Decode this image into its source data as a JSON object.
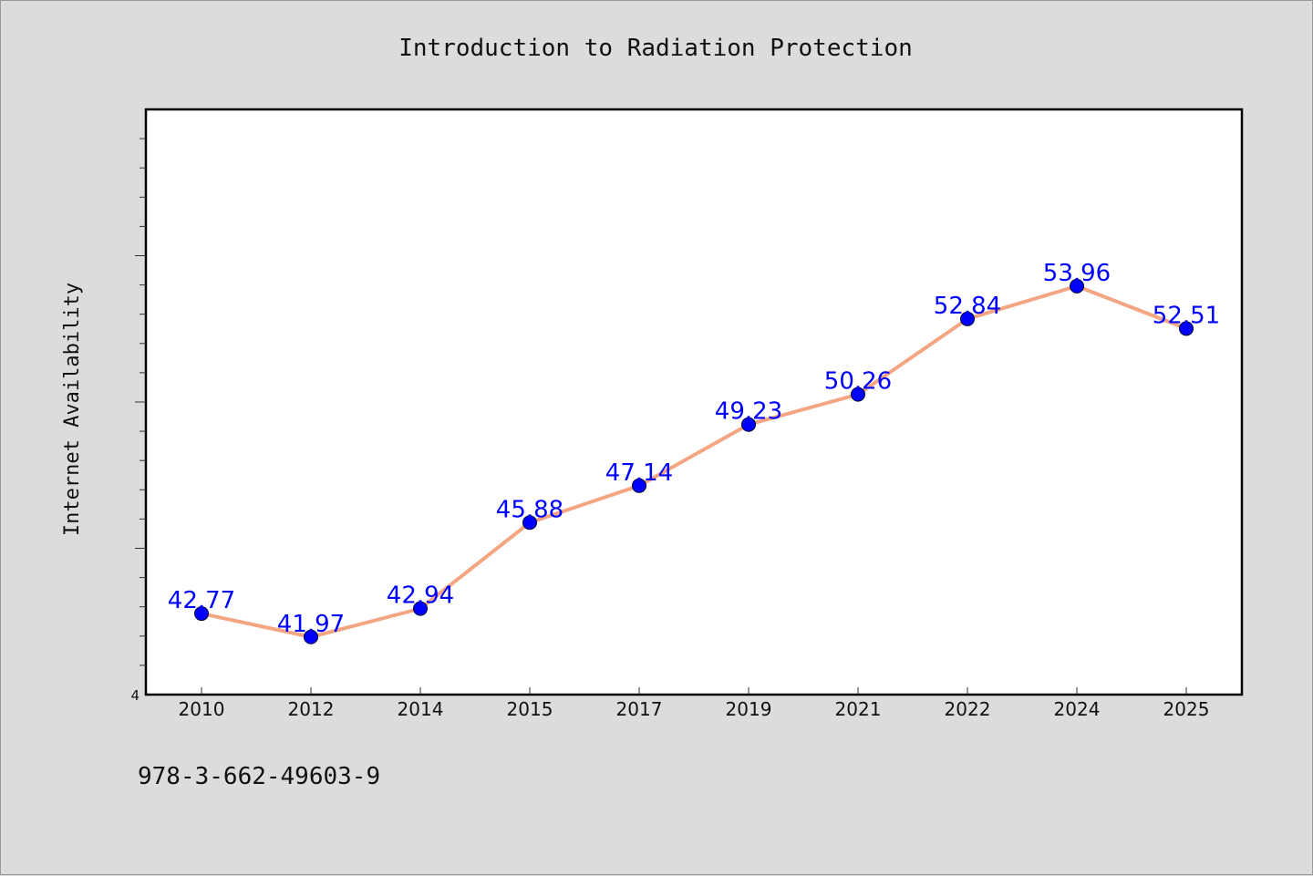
{
  "isbn": "978-3-662-49603-9",
  "colors": {
    "background": "#dcdcdc",
    "plot_background": "#ffffff",
    "line": "#f4a582",
    "marker": "#0000ff",
    "data_label": "#0000ff",
    "text": "#111111"
  },
  "chart_data": {
    "type": "line",
    "title": "Introduction to Radiation Protection",
    "xlabel": "",
    "ylabel": "Internet Availability",
    "categories": [
      "2010",
      "2012",
      "2014",
      "2015",
      "2017",
      "2019",
      "2021",
      "2022",
      "2024",
      "2025"
    ],
    "series": [
      {
        "values": [
          42.77,
          41.97,
          42.94,
          45.88,
          47.14,
          49.23,
          50.26,
          52.84,
          53.96,
          52.51
        ],
        "labels": [
          "42.77",
          "41.97",
          "42.94",
          "45.88",
          "47.14",
          "49.23",
          "50.26",
          "52.84",
          "53.96",
          "52.51"
        ]
      }
    ],
    "ylim": [
      40,
      60
    ],
    "y_tick_labels": [
      "4"
    ],
    "grid": false,
    "legend": "none"
  }
}
